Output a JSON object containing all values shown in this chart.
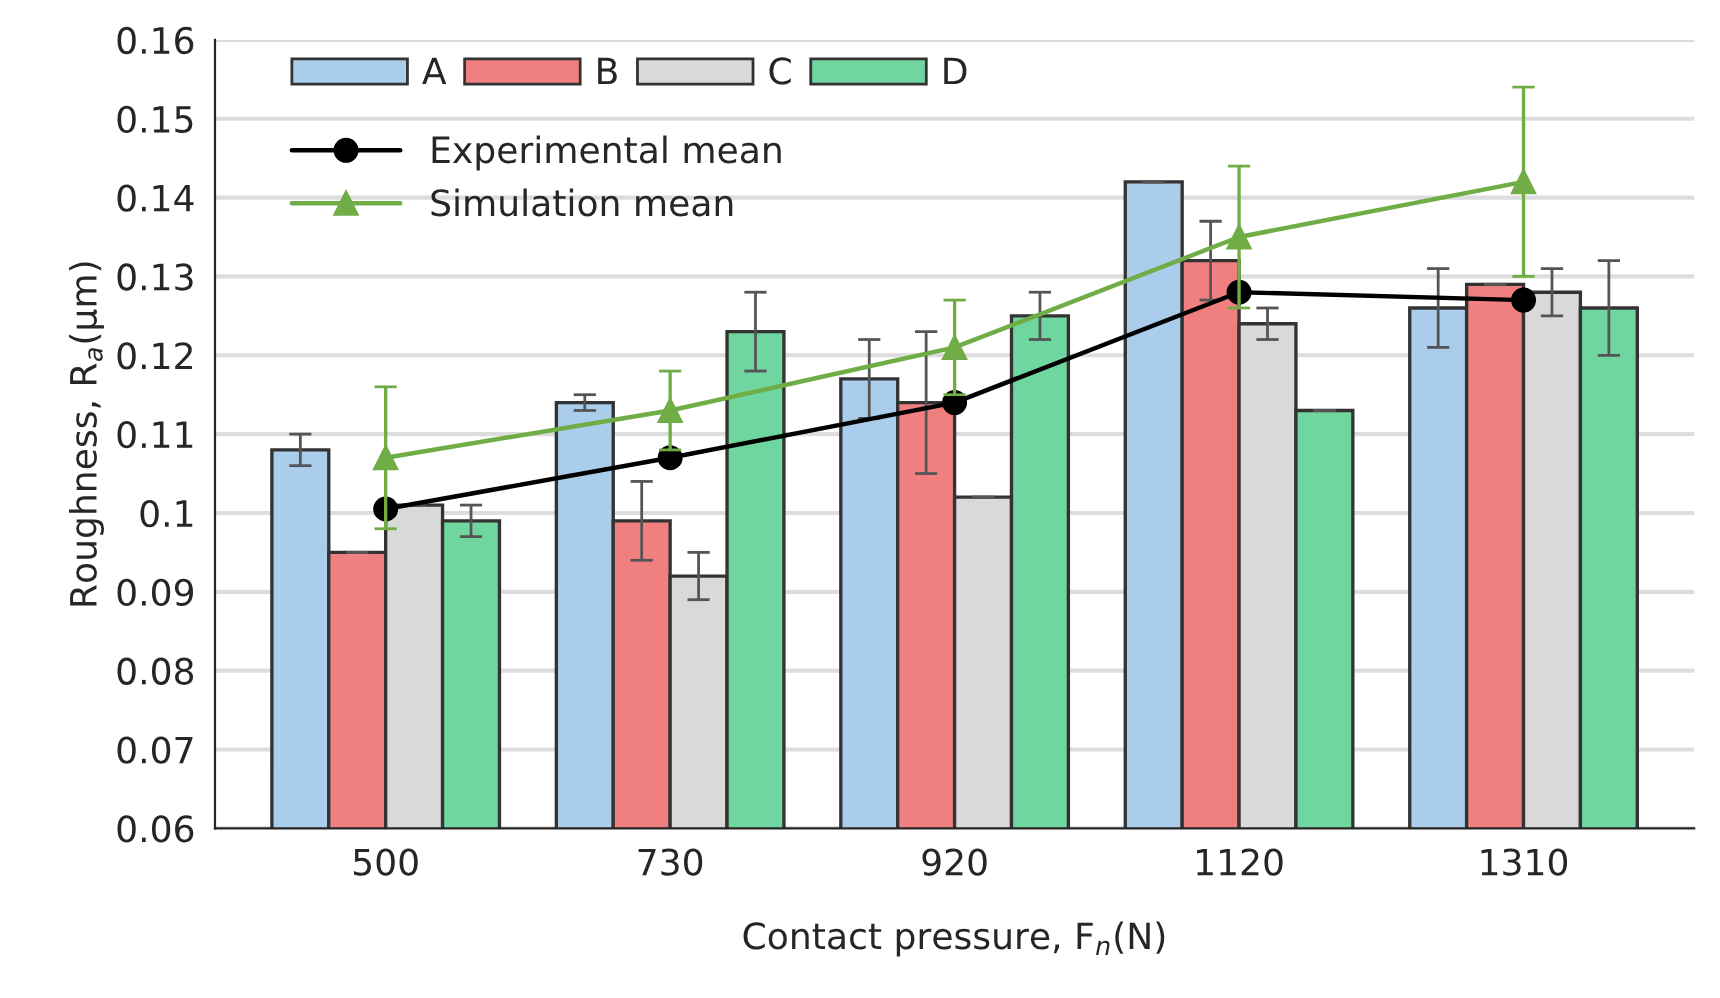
{
  "chart_data": {
    "type": "bar",
    "xlabel": "Contact pressure, F$_{n}$(N)",
    "ylabel": "Roughness, R$_{a}$(μm)",
    "categories": [
      "500",
      "730",
      "920",
      "1120",
      "1310"
    ],
    "series": [
      {
        "name": "A",
        "color": "#a9cdea",
        "values": [
          0.108,
          0.114,
          0.117,
          0.142,
          0.126
        ],
        "errors": [
          0.002,
          0.001,
          0.005,
          null,
          0.005
        ]
      },
      {
        "name": "B",
        "color": "#f08080",
        "values": [
          0.095,
          0.099,
          0.114,
          0.132,
          0.129
        ],
        "errors": [
          null,
          0.005,
          0.009,
          0.005,
          null
        ]
      },
      {
        "name": "C",
        "color": "#d9d9d9",
        "values": [
          0.101,
          0.092,
          0.102,
          0.124,
          0.128
        ],
        "errors": [
          null,
          0.003,
          null,
          0.002,
          0.003
        ]
      },
      {
        "name": "D",
        "color": "#6fd6a0",
        "values": [
          0.099,
          0.123,
          0.125,
          0.113,
          0.126
        ],
        "errors": [
          0.002,
          0.005,
          0.003,
          null,
          0.006
        ]
      },
      {
        "name": "Experimental mean",
        "type": "line",
        "marker": "circle",
        "color": "#000000",
        "values": [
          0.1005,
          0.107,
          0.114,
          0.128,
          0.127
        ]
      },
      {
        "name": "Simulation mean",
        "type": "line",
        "marker": "triangle",
        "color": "#70ad47",
        "values": [
          0.107,
          0.113,
          0.121,
          0.135,
          0.142
        ],
        "errors": [
          0.009,
          0.005,
          0.006,
          0.009,
          0.012
        ]
      }
    ],
    "ylim": [
      0.06,
      0.16
    ],
    "yticks": [
      0.06,
      0.07,
      0.08,
      0.09,
      0.1,
      0.11,
      0.12,
      0.13,
      0.14,
      0.15,
      0.16
    ],
    "grid": "y",
    "legend": "top left"
  }
}
